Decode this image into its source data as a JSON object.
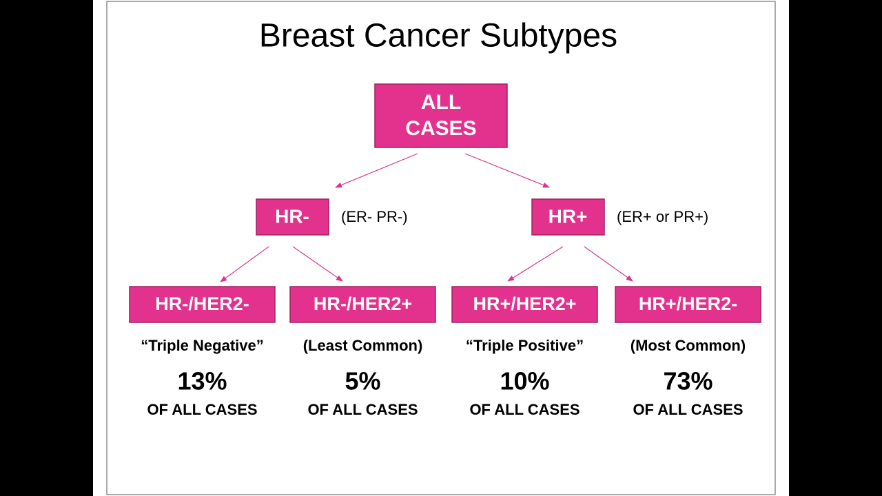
{
  "title": "Breast Cancer Subtypes",
  "root": {
    "lines": [
      "ALL",
      "CASES"
    ]
  },
  "branches": [
    {
      "label": "HR-",
      "note": "(ER- PR-)"
    },
    {
      "label": "HR+",
      "note": "(ER+ or PR+)"
    }
  ],
  "leaves": [
    {
      "label": "HR-/HER2-",
      "description": "“Triple Negative”",
      "share": "13%",
      "caption": "OF ALL CASES"
    },
    {
      "label": "HR-/HER2+",
      "description": "(Least Common)",
      "share": "5%",
      "caption": "OF ALL CASES"
    },
    {
      "label": "HR+/HER2+",
      "description": "“Triple Positive”",
      "share": "10%",
      "caption": "OF ALL CASES"
    },
    {
      "label": "HR+/HER2-",
      "description": "(Most Common)",
      "share": "73%",
      "caption": "OF ALL CASES"
    }
  ]
}
